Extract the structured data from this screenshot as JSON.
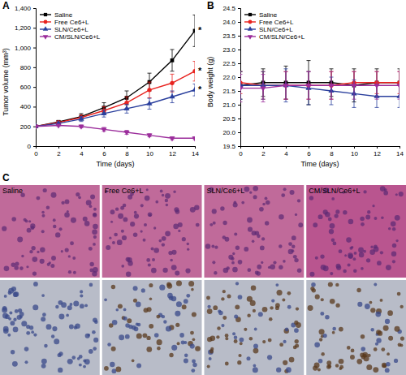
{
  "chart_data": [
    {
      "type": "line",
      "title": "A",
      "x_label": "Time (days)",
      "y_label": "Tumor volume (mm³)",
      "x": [
        0,
        2,
        4,
        6,
        8,
        10,
        12,
        14
      ],
      "xlim": [
        0,
        14
      ],
      "xticks": [
        0,
        2,
        4,
        6,
        8,
        10,
        12,
        14
      ],
      "ylim": [
        0,
        1400
      ],
      "yticks": [
        0,
        200,
        400,
        600,
        800,
        {
          "value": 1000,
          "label": "1,000"
        },
        {
          "value": 1200,
          "label": "1,200"
        },
        {
          "value": 1400,
          "label": "1,400"
        }
      ],
      "grid": false,
      "legend": "top-left",
      "series": [
        {
          "name": "Saline",
          "color": "#000000",
          "marker": "square",
          "values": [
            200,
            245,
            300,
            390,
            490,
            650,
            870,
            1170
          ],
          "errors": [
            0,
            15,
            30,
            50,
            70,
            90,
            110,
            160
          ]
        },
        {
          "name": "Free Ce6+L",
          "color": "#e8231f",
          "marker": "circle",
          "values": [
            200,
            240,
            290,
            360,
            440,
            570,
            640,
            760
          ],
          "errors": [
            0,
            15,
            25,
            40,
            60,
            80,
            90,
            100
          ]
        },
        {
          "name": "SLN/Ce6+L",
          "color": "#2a3f9d",
          "marker": "triangle",
          "values": [
            200,
            230,
            275,
            330,
            380,
            430,
            500,
            570
          ],
          "errors": [
            0,
            15,
            25,
            35,
            45,
            55,
            60,
            60
          ]
        },
        {
          "name": "CM/SLN/Ce6+L",
          "color": "#9b2d9b",
          "marker": "triangle-down",
          "values": [
            200,
            210,
            200,
            170,
            140,
            110,
            80,
            80
          ],
          "errors": [
            0,
            10,
            15,
            20,
            20,
            15,
            15,
            15
          ]
        }
      ],
      "annotations": [
        {
          "text": "*",
          "x": 14,
          "y": 1170
        },
        {
          "text": "*",
          "x": 14,
          "y": 760
        },
        {
          "text": "*",
          "x": 14,
          "y": 570
        }
      ]
    },
    {
      "type": "line",
      "title": "B",
      "x_label": "Time (days)",
      "y_label": "Body weight (g)",
      "x": [
        0,
        2,
        4,
        6,
        8,
        10,
        12,
        14
      ],
      "xlim": [
        0,
        14
      ],
      "xticks": [
        0,
        2,
        4,
        6,
        8,
        10,
        12,
        14
      ],
      "ylim": [
        19.5,
        24.5
      ],
      "yticks": [
        19.5,
        {
          "value": 20,
          "label": "20.0"
        },
        20.5,
        {
          "value": 21,
          "label": "21.0"
        },
        21.5,
        {
          "value": 22,
          "label": "22.0"
        },
        22.5,
        {
          "value": 23,
          "label": "23.0"
        },
        23.5,
        {
          "value": 24,
          "label": "24.0"
        },
        24.5
      ],
      "grid": false,
      "legend": "top-left",
      "series": [
        {
          "name": "Saline",
          "color": "#000000",
          "marker": "square",
          "values": [
            21.7,
            21.8,
            21.8,
            21.8,
            21.8,
            21.7,
            21.8,
            21.8
          ],
          "errors": [
            0.5,
            0.5,
            0.6,
            0.8,
            0.5,
            0.6,
            0.5,
            0.5
          ]
        },
        {
          "name": "Free Ce6+L",
          "color": "#e8231f",
          "marker": "circle",
          "values": [
            21.8,
            21.7,
            21.7,
            21.7,
            21.7,
            21.8,
            21.8,
            21.8
          ],
          "errors": [
            0.4,
            0.5,
            0.5,
            0.5,
            0.5,
            0.4,
            0.4,
            0.4
          ]
        },
        {
          "name": "SLN/Ce6+L",
          "color": "#2a3f9d",
          "marker": "triangle",
          "values": [
            21.7,
            21.7,
            21.7,
            21.6,
            21.5,
            21.4,
            21.3,
            21.3
          ],
          "errors": [
            0.5,
            0.5,
            0.6,
            0.6,
            0.5,
            0.5,
            0.4,
            0.4
          ]
        },
        {
          "name": "CM/SLN/Ce6+L",
          "color": "#9b2d9b",
          "marker": "triangle-down",
          "values": [
            21.6,
            21.6,
            21.7,
            21.7,
            21.7,
            21.7,
            21.7,
            21.7
          ],
          "errors": [
            0.5,
            0.5,
            0.5,
            0.5,
            0.5,
            0.5,
            0.5,
            0.5
          ]
        }
      ]
    }
  ],
  "panel_c": {
    "label": "C",
    "columns": [
      "Saline",
      "Free Ce6+L",
      "SLN/Ce6+L",
      "CM/SLN/Ce6+L"
    ]
  }
}
